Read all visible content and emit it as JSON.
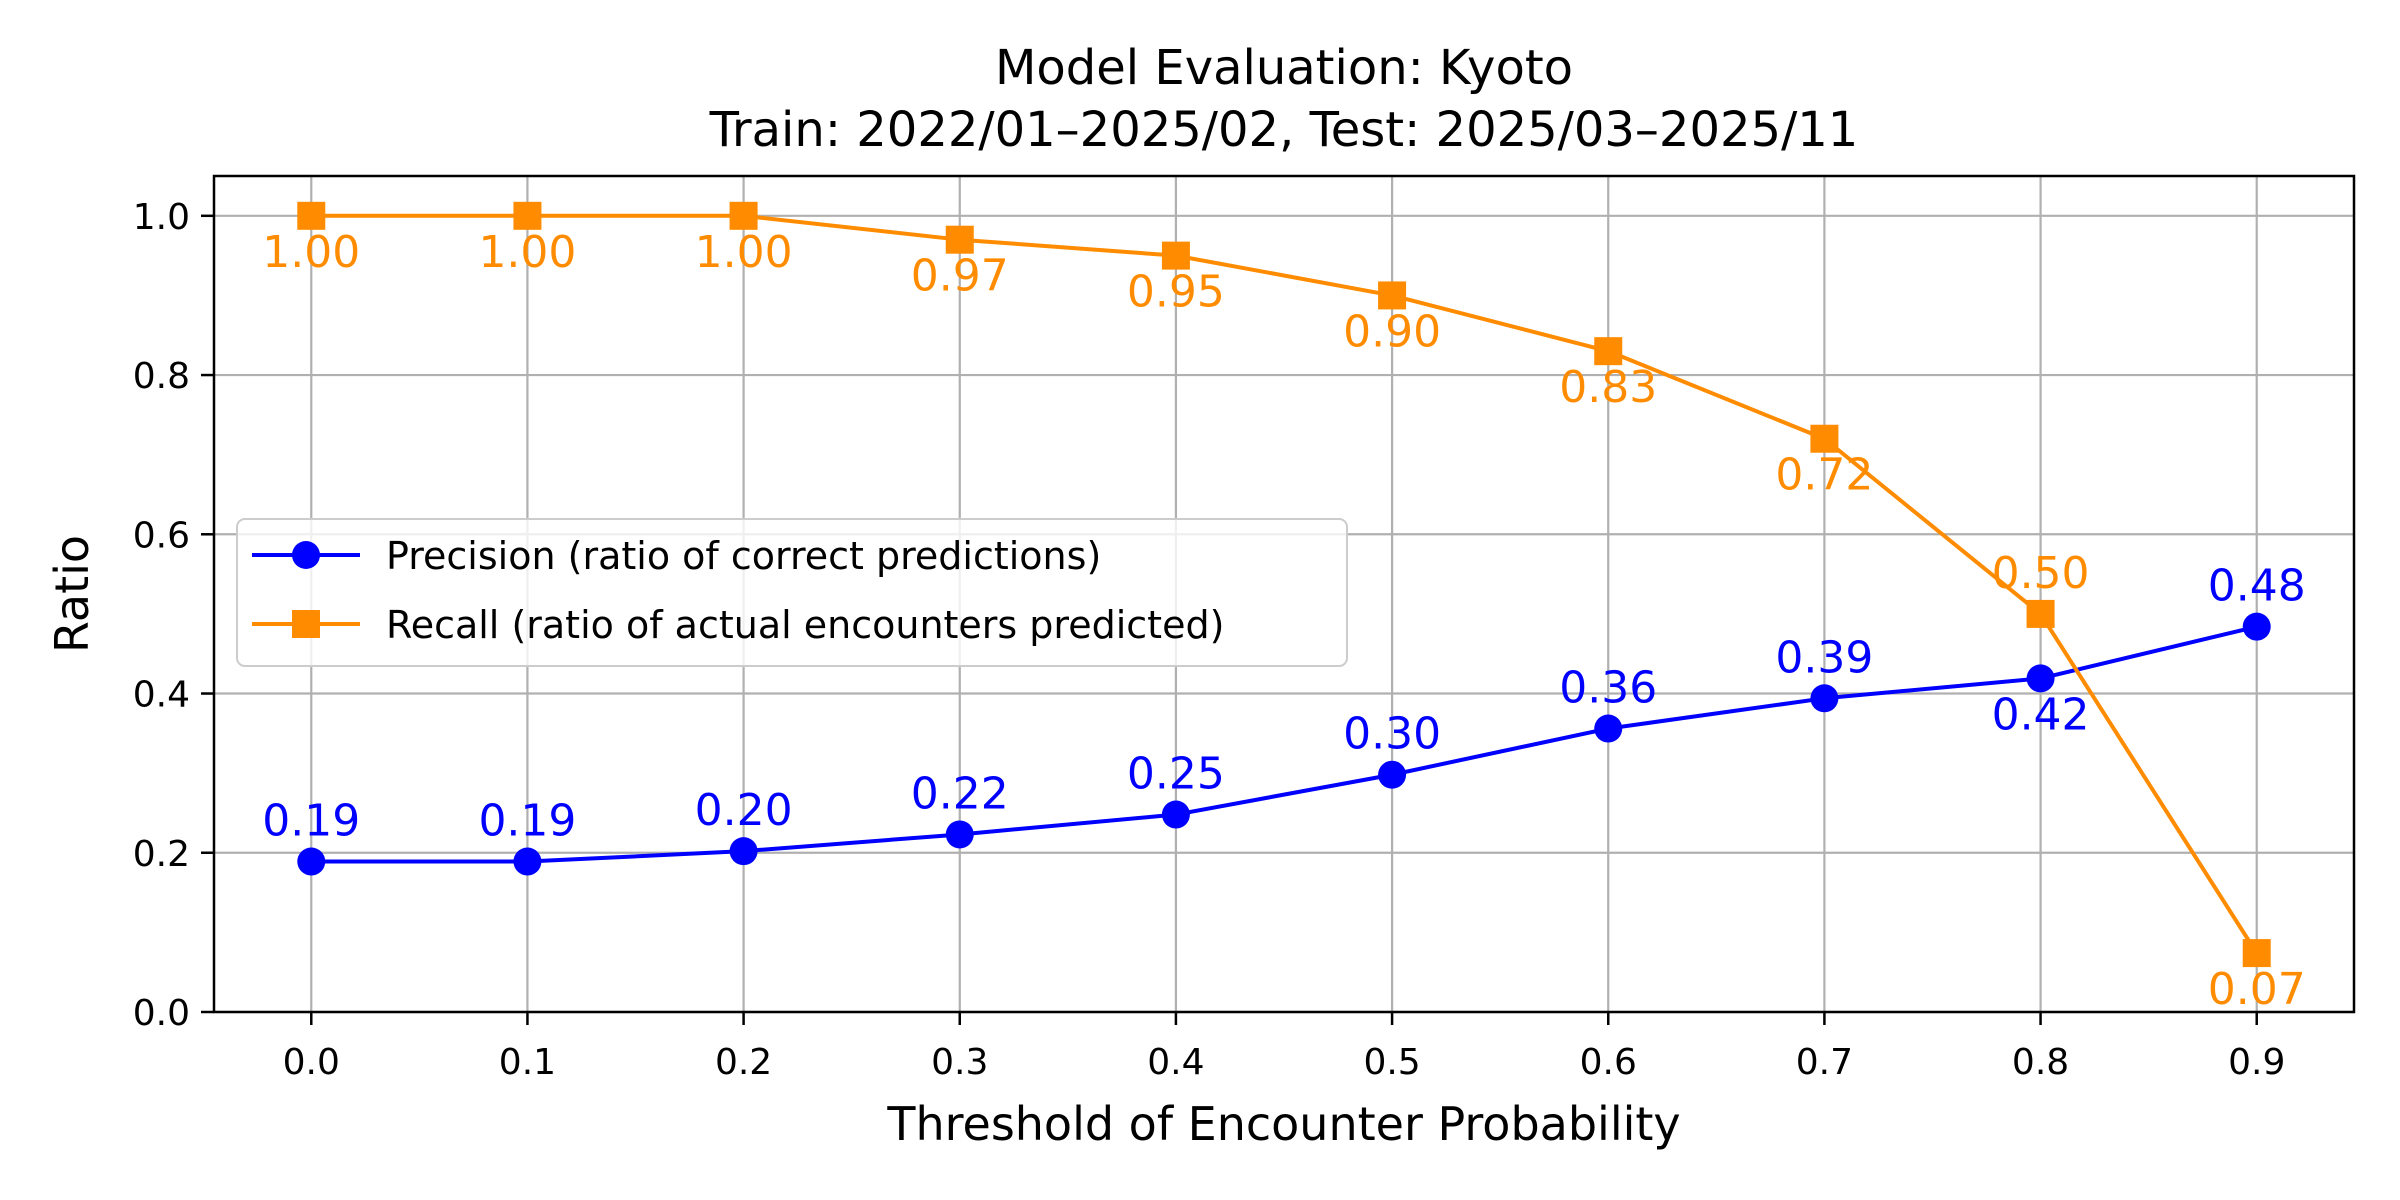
{
  "chart_data": {
    "type": "line",
    "title": "Model Evaluation: Kyoto",
    "subtitle": "Train: 2022/01–2025/02, Test: 2025/03–2025/11",
    "xlabel": "Threshold of Encounter Probability",
    "ylabel": "Ratio",
    "x": [
      0.0,
      0.1,
      0.2,
      0.3,
      0.4,
      0.5,
      0.6,
      0.7,
      0.8,
      0.9
    ],
    "xlim": [
      -0.045,
      0.945
    ],
    "ylim": [
      0.0,
      1.05
    ],
    "xticks": [
      "0.0",
      "0.1",
      "0.2",
      "0.3",
      "0.4",
      "0.5",
      "0.6",
      "0.7",
      "0.8",
      "0.9"
    ],
    "yticks": [
      "0.0",
      "0.2",
      "0.4",
      "0.6",
      "0.8",
      "1.0"
    ],
    "grid": true,
    "legend_position": "center-left",
    "series": [
      {
        "name": "Precision (ratio of correct predictions)",
        "color": "#0000ff",
        "marker": "circle",
        "label_position": "above",
        "values": [
          0.189,
          0.189,
          0.202,
          0.223,
          0.248,
          0.298,
          0.356,
          0.394,
          0.419,
          0.484
        ]
      },
      {
        "name": "Recall (ratio of actual encounters predicted)",
        "color": "#ff8c00",
        "marker": "square",
        "label_position": "below",
        "values": [
          1.0,
          1.0,
          1.0,
          0.97,
          0.95,
          0.9,
          0.83,
          0.72,
          0.5,
          0.074
        ]
      }
    ]
  }
}
